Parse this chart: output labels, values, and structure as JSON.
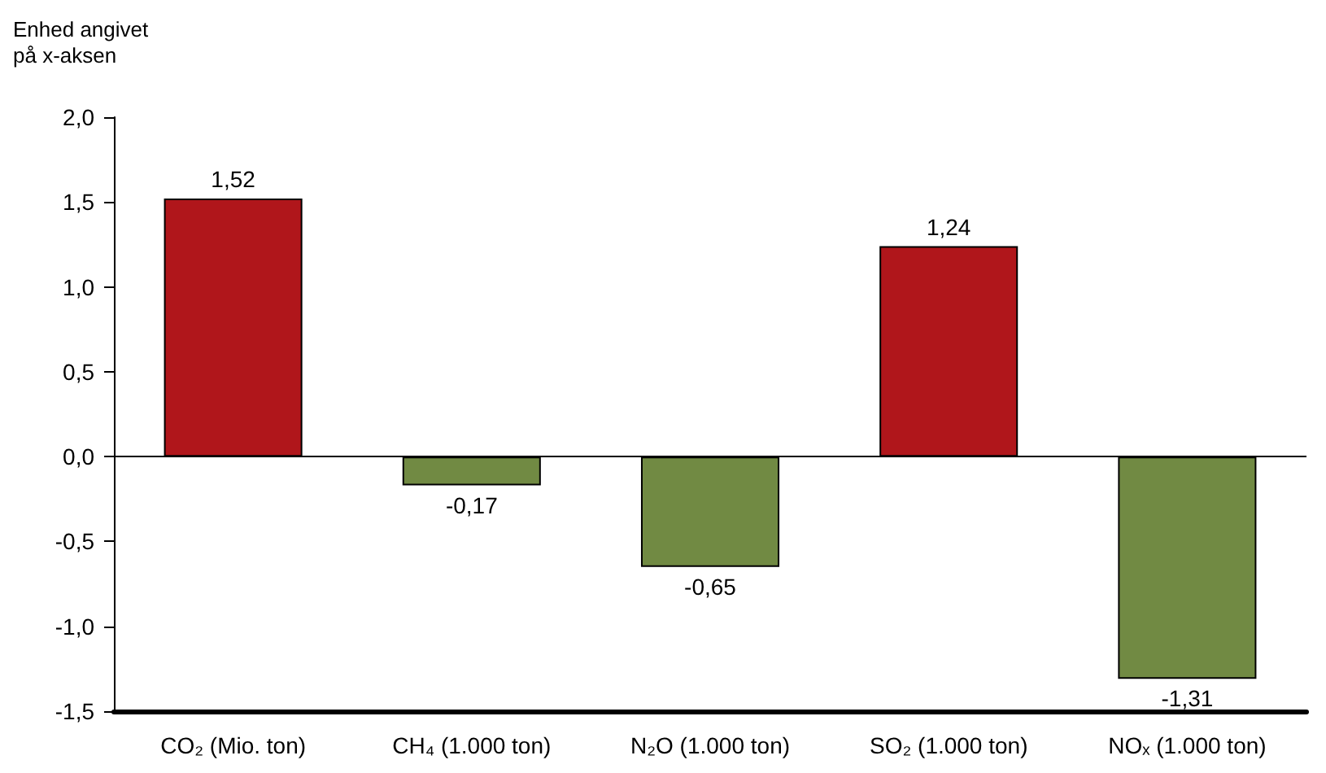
{
  "chart_data": {
    "type": "bar",
    "ylabel": "Enhed angivet på x-aksen",
    "categories": [
      "CO₂ (Mio. ton)",
      "CH₄ (1.000 ton)",
      "N₂O (1.000 ton)",
      "SO₂ (1.000 ton)",
      "NOₓ (1.000 ton)"
    ],
    "values": [
      1.52,
      -0.17,
      -0.65,
      1.24,
      -1.31
    ],
    "colors": [
      "#b0161b",
      "#718a43",
      "#718a43",
      "#b0161b",
      "#718a43"
    ],
    "ylim": [
      -1.5,
      2.0
    ],
    "yticks": [
      {
        "value": -1.5,
        "label": "-1,5"
      },
      {
        "value": -1.0,
        "label": "-1,0"
      },
      {
        "value": -0.5,
        "label": "-0,5"
      },
      {
        "value": 0,
        "label": "0,0"
      },
      {
        "value": 0.5,
        "label": "0,5"
      },
      {
        "value": 1.0,
        "label": "1,0"
      },
      {
        "value": 1.5,
        "label": "1,5"
      },
      {
        "value": 2.0,
        "label": "2,0"
      }
    ],
    "ref_lines": [
      {
        "axis": "y",
        "value": 0,
        "label": null
      }
    ],
    "value_labels": [
      "1,52",
      "-0,17",
      "-0,65",
      "1,24",
      "-1,31"
    ],
    "grid": false
  }
}
